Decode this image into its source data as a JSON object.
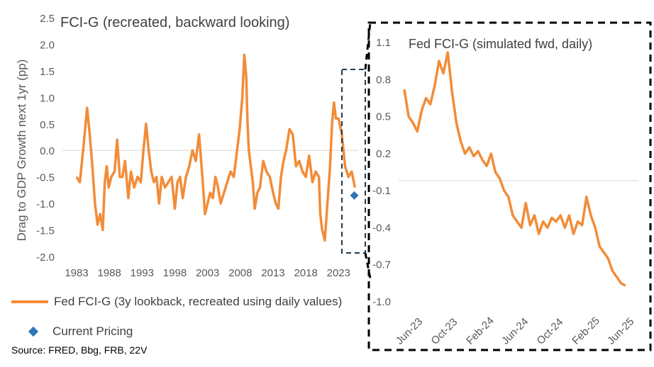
{
  "colors": {
    "series": "#F28C38",
    "marker": "#2E75B6",
    "axis": "#d9d9d9",
    "text": "#595959",
    "box": "#000000",
    "box_small": "#1f3a4d"
  },
  "legend": {
    "series_label": "Fed FCI-G (3y lookback, recreated using daily values)",
    "marker_label": "Current Pricing"
  },
  "source": "Source: FRED, Bbg, FRB, 22V",
  "chart_data": [
    {
      "type": "line",
      "title": "FCI-G (recreated, backward looking)",
      "ylabel": "Drag to GDP Growth next 1yr (pp)",
      "xlabel": "",
      "ylim": [
        -2.0,
        2.5
      ],
      "yticks": [
        "2.5",
        "2.0",
        "1.5",
        "1.0",
        "0.5",
        "0.0",
        "-0.5",
        "-1.0",
        "-1.5",
        "-2.0"
      ],
      "xlim": [
        1983,
        2026
      ],
      "xticks": [
        "1983",
        "1988",
        "1993",
        "1998",
        "2003",
        "2008",
        "2013",
        "2018",
        "2023"
      ],
      "grid": false,
      "series": [
        {
          "name": "Fed FCI-G (3y lookback, recreated using daily values)",
          "x": [
            1983.0,
            1983.5,
            1984.0,
            1984.6,
            1985.0,
            1985.4,
            1985.8,
            1986.2,
            1986.6,
            1987.0,
            1987.3,
            1987.6,
            1987.9,
            1988.3,
            1988.8,
            1989.2,
            1989.6,
            1990.0,
            1990.4,
            1990.9,
            1991.3,
            1991.8,
            1992.3,
            1992.8,
            1993.2,
            1993.6,
            1994.0,
            1994.4,
            1994.8,
            1995.2,
            1995.6,
            1996.0,
            1996.5,
            1997.0,
            1997.5,
            1998.0,
            1998.4,
            1998.8,
            1999.2,
            1999.7,
            2000.2,
            2000.7,
            2001.2,
            2001.7,
            2002.2,
            2002.6,
            2003.0,
            2003.4,
            2003.8,
            2004.2,
            2004.6,
            2005.0,
            2005.5,
            2006.0,
            2006.5,
            2007.0,
            2007.5,
            2007.9,
            2008.3,
            2008.6,
            2008.9,
            2009.1,
            2009.3,
            2009.6,
            2009.9,
            2010.2,
            2010.6,
            2011.0,
            2011.5,
            2012.0,
            2012.5,
            2013.0,
            2013.4,
            2013.8,
            2014.2,
            2014.6,
            2015.0,
            2015.5,
            2016.0,
            2016.5,
            2017.0,
            2017.5,
            2018.0,
            2018.5,
            2019.0,
            2019.5,
            2020.0,
            2020.2,
            2020.5,
            2020.9,
            2021.3,
            2021.7,
            2022.0,
            2022.3,
            2022.6,
            2023.0,
            2023.5,
            2024.0,
            2024.5,
            2025.0,
            2025.5
          ],
          "y": [
            -0.5,
            -0.6,
            0.0,
            0.8,
            0.3,
            -0.3,
            -1.0,
            -1.4,
            -1.2,
            -1.5,
            -0.6,
            -0.3,
            -0.7,
            -0.5,
            -0.4,
            0.2,
            -0.5,
            -0.5,
            -0.2,
            -0.9,
            -0.4,
            -0.7,
            -0.5,
            -0.6,
            0.0,
            0.5,
            0.0,
            -0.4,
            -0.6,
            -0.5,
            -1.0,
            -0.5,
            -0.7,
            -0.6,
            -0.5,
            -1.1,
            -0.6,
            -0.5,
            -0.9,
            -0.5,
            -0.3,
            0.0,
            -0.2,
            0.3,
            -0.5,
            -1.2,
            -1.0,
            -0.8,
            -0.9,
            -0.5,
            -0.7,
            -1.0,
            -0.8,
            -0.6,
            -0.4,
            -0.5,
            0.0,
            0.4,
            1.0,
            1.8,
            1.4,
            0.5,
            0.0,
            -0.3,
            -0.6,
            -1.1,
            -0.8,
            -0.7,
            -0.2,
            -0.4,
            -0.5,
            -0.8,
            -1.0,
            -1.1,
            -0.5,
            -0.2,
            0.0,
            0.4,
            0.3,
            -0.3,
            -0.2,
            -0.4,
            -0.5,
            -0.1,
            -0.6,
            -0.4,
            -0.5,
            -1.2,
            -1.5,
            -1.7,
            -1.0,
            -0.3,
            0.5,
            0.9,
            0.6,
            0.6,
            0.3,
            -0.3,
            -0.5,
            -0.4,
            -0.7
          ]
        }
      ],
      "markers": [
        {
          "name": "Current Pricing",
          "x": 2025.4,
          "y": -0.85
        }
      ]
    },
    {
      "type": "line",
      "title": "Fed FCI-G (simulated fwd, daily)",
      "ylim": [
        -1.0,
        1.1
      ],
      "yticks": [
        "1.1",
        "0.8",
        "0.5",
        "0.2",
        "-0.1",
        "-0.4",
        "-0.7",
        "-1.0"
      ],
      "xticks": [
        "Jun-23",
        "Oct-23",
        "Feb-24",
        "Jun-24",
        "Oct-24",
        "Feb-25",
        "Jun-25"
      ],
      "xlim": [
        0,
        26
      ],
      "grid": false,
      "series": [
        {
          "name": "Fed FCI-G (simulated fwd, daily)",
          "x": [
            0.0,
            0.5,
            1.0,
            1.5,
            2.0,
            2.5,
            3.0,
            3.5,
            4.0,
            4.5,
            5.0,
            5.5,
            6.0,
            6.5,
            7.0,
            7.5,
            8.0,
            8.5,
            9.0,
            9.5,
            10.0,
            10.5,
            11.0,
            11.5,
            12.0,
            12.5,
            13.0,
            13.5,
            14.0,
            14.5,
            15.0,
            15.5,
            16.0,
            16.5,
            17.0,
            17.5,
            18.0,
            18.5,
            19.0,
            19.5,
            20.0,
            20.5,
            21.0,
            21.5,
            22.0,
            22.5,
            23.0,
            23.5,
            24.0,
            24.5,
            25.0,
            25.5
          ],
          "y": [
            0.72,
            0.5,
            0.45,
            0.38,
            0.55,
            0.65,
            0.6,
            0.75,
            0.95,
            0.85,
            1.02,
            0.7,
            0.45,
            0.3,
            0.2,
            0.25,
            0.18,
            0.22,
            0.15,
            0.1,
            0.2,
            0.05,
            0.0,
            -0.1,
            -0.15,
            -0.3,
            -0.35,
            -0.4,
            -0.2,
            -0.38,
            -0.3,
            -0.45,
            -0.35,
            -0.4,
            -0.32,
            -0.35,
            -0.3,
            -0.4,
            -0.3,
            -0.45,
            -0.35,
            -0.38,
            -0.15,
            -0.3,
            -0.4,
            -0.55,
            -0.6,
            -0.65,
            -0.75,
            -0.8,
            -0.85,
            -0.87
          ]
        }
      ]
    }
  ]
}
